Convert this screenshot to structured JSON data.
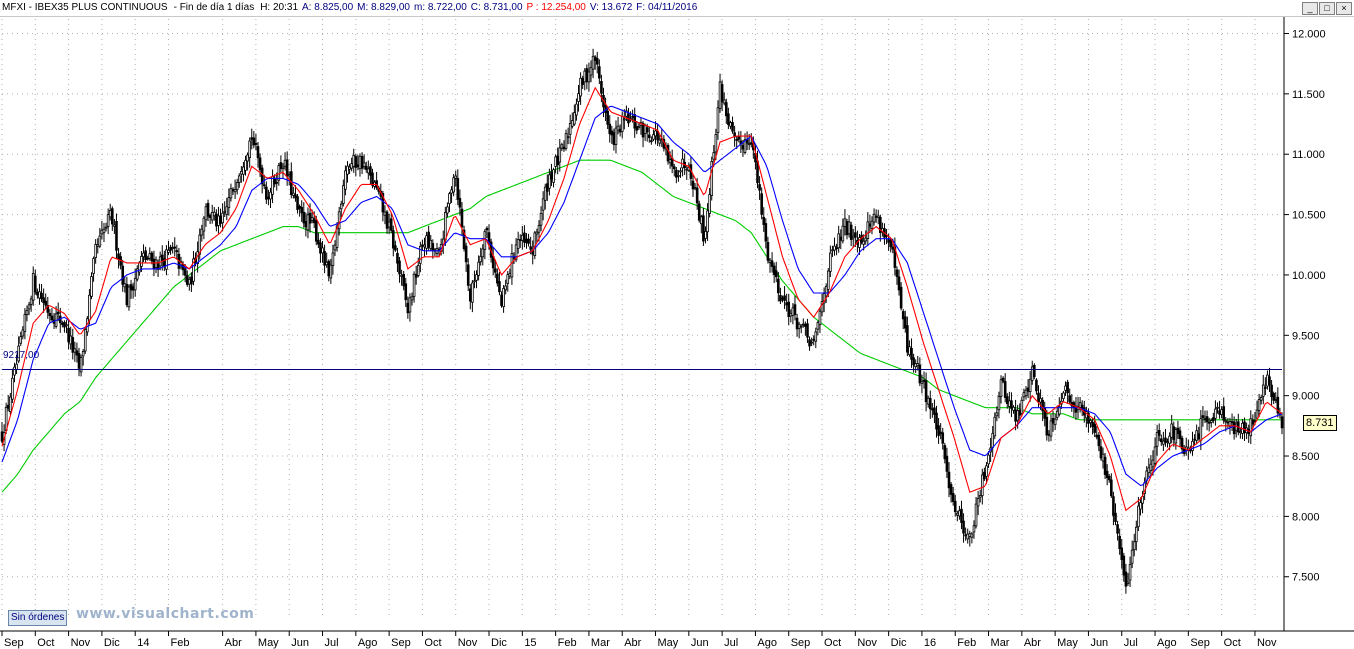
{
  "header": {
    "symbol": "MFXI - IBEX35 PLUS CONTINUOUS",
    "period": "- Fin de día 1 días",
    "h": "H: 20:31",
    "a": "A: 8.825,00",
    "m": "M: 8.829,00",
    "min": "m: 8.722,00",
    "c": "C: 8.731,00",
    "p": "P : 12.254,00",
    "v": "V: 13.672",
    "f": "F: 04/11/2016"
  },
  "window_controls": {
    "minimize": "_",
    "maximize": "□",
    "close": "×"
  },
  "status": {
    "orders_badge": "Sin órdenes",
    "watermark": "www.visualchart.com"
  },
  "level_label": "9217,00",
  "last_price_label": "8.731",
  "colors": {
    "candles": "#000000",
    "ma_fast": "#ff0000",
    "ma_mid": "#0000ff",
    "ma_slow": "#00cc00",
    "hline": "#000080",
    "grid": "#b0b0b0"
  },
  "chart_data": {
    "type": "line",
    "title": "",
    "xlabel": "",
    "ylabel": "",
    "ylim": [
      7150,
      12120
    ],
    "y_ticks": [
      "7.500",
      "8.000",
      "8.500",
      "9.000",
      "9.500",
      "10.000",
      "10.500",
      "11.000",
      "11.500",
      "12.000"
    ],
    "y_tick_values": [
      7500,
      8000,
      8500,
      9000,
      9500,
      10000,
      10500,
      11000,
      11500,
      12000
    ],
    "x_ticks": [
      "Sep",
      "Oct",
      "Nov",
      "Dic",
      "14",
      "Feb",
      "Abr",
      "May",
      "Jun",
      "Jul",
      "Ago",
      "Sep",
      "Oct",
      "Nov",
      "Dic",
      "15",
      "Feb",
      "Mar",
      "Abr",
      "May",
      "Jun",
      "Jul",
      "Ago",
      "Sep",
      "Oct",
      "Nov",
      "Dic",
      "16",
      "Feb",
      "Mar",
      "Abr",
      "May",
      "Jun",
      "Jul",
      "Ago",
      "Sep",
      "Oct",
      "Nov"
    ],
    "x_tick_index": [
      0,
      16,
      32,
      48,
      64,
      80,
      106,
      122,
      138,
      154,
      170,
      186,
      202,
      218,
      234,
      250,
      266,
      282,
      298,
      314,
      330,
      346,
      362,
      378,
      394,
      410,
      426,
      442,
      458,
      474,
      490,
      506,
      522,
      538,
      554,
      570,
      586,
      602
    ],
    "horizontal_line": 9217,
    "last_close": 8731,
    "series": [
      {
        "role": "price",
        "values": [
          8680,
          9300,
          9950,
          9700,
          9600,
          9200,
          10200,
          10500,
          9800,
          10150,
          10100,
          10200,
          9900,
          10550,
          10400,
          10800,
          11150,
          10650,
          10950,
          10500,
          10400,
          9950,
          10900,
          10950,
          10700,
          10300,
          9700,
          10300,
          10150,
          10900,
          9800,
          10400,
          9750,
          10300,
          10200,
          10800,
          11050,
          11550,
          11800,
          11100,
          11300,
          11200,
          11150,
          10850,
          10950,
          10300,
          11550,
          11050,
          11150,
          10200,
          9800,
          9600,
          9400,
          10100,
          10400,
          10300,
          10500,
          10200,
          9400,
          9100,
          8700,
          8100,
          7800,
          8400,
          9100,
          8800,
          9200,
          8700,
          9050,
          8900,
          8750,
          8200,
          7400,
          8200,
          8650,
          8700,
          8500,
          8800,
          8900,
          8700,
          8750,
          9150,
          8750
        ]
      },
      {
        "role": "ma_fast",
        "values": [
          8580,
          9050,
          9600,
          9750,
          9680,
          9500,
          9700,
          10150,
          10100,
          10100,
          10100,
          10150,
          10050,
          10250,
          10350,
          10550,
          10900,
          10800,
          10850,
          10700,
          10500,
          10250,
          10550,
          10750,
          10750,
          10500,
          10050,
          10150,
          10150,
          10500,
          10250,
          10300,
          10000,
          10150,
          10200,
          10450,
          10800,
          11250,
          11550,
          11350,
          11300,
          11250,
          11200,
          10950,
          10900,
          10650,
          11100,
          11150,
          11150,
          10650,
          10150,
          9800,
          9650,
          9850,
          10150,
          10300,
          10400,
          10300,
          9900,
          9450,
          9050,
          8650,
          8200,
          8250,
          8650,
          8750,
          9000,
          8850,
          8950,
          8900,
          8800,
          8500,
          8050,
          8150,
          8450,
          8600,
          8550,
          8650,
          8750,
          8750,
          8700,
          8950,
          8850
        ]
      },
      {
        "role": "ma_mid",
        "values": [
          8450,
          8800,
          9300,
          9600,
          9650,
          9550,
          9600,
          9900,
          10000,
          10050,
          10050,
          10100,
          10050,
          10150,
          10250,
          10400,
          10700,
          10800,
          10800,
          10750,
          10600,
          10400,
          10450,
          10600,
          10650,
          10550,
          10250,
          10200,
          10200,
          10350,
          10300,
          10300,
          10150,
          10150,
          10200,
          10350,
          10600,
          10950,
          11300,
          11400,
          11350,
          11300,
          11250,
          11100,
          11000,
          10850,
          10950,
          11050,
          11150,
          10900,
          10450,
          10050,
          9850,
          9850,
          10000,
          10200,
          10300,
          10300,
          10100,
          9700,
          9300,
          8900,
          8550,
          8500,
          8650,
          8750,
          8900,
          8900,
          8900,
          8900,
          8850,
          8700,
          8350,
          8250,
          8400,
          8500,
          8550,
          8600,
          8700,
          8750,
          8700,
          8800,
          8850
        ]
      },
      {
        "role": "ma_slow",
        "values": [
          8200,
          8350,
          8550,
          8700,
          8850,
          8950,
          9150,
          9300,
          9450,
          9600,
          9750,
          9900,
          10000,
          10100,
          10200,
          10250,
          10300,
          10350,
          10400,
          10400,
          10350,
          10350,
          10350,
          10350,
          10350,
          10350,
          10350,
          10400,
          10450,
          10500,
          10550,
          10650,
          10700,
          10750,
          10800,
          10850,
          10900,
          10950,
          10950,
          10950,
          10900,
          10850,
          10750,
          10650,
          10600,
          10550,
          10500,
          10450,
          10350,
          10150,
          9950,
          9800,
          9650,
          9550,
          9450,
          9350,
          9300,
          9250,
          9200,
          9150,
          9050,
          9000,
          8950,
          8900,
          8900,
          8900,
          8850,
          8850,
          8850,
          8800,
          8800,
          8800,
          8800,
          8800,
          8800,
          8800,
          8800,
          8800,
          8800,
          8800,
          8800,
          8800,
          8800
        ]
      }
    ]
  }
}
